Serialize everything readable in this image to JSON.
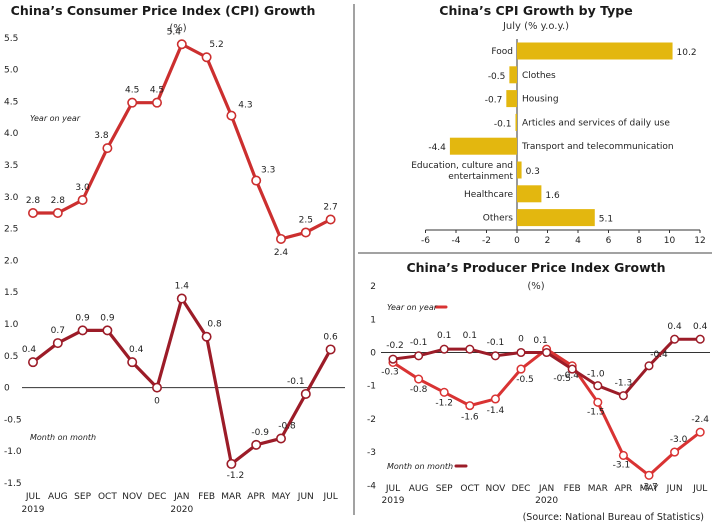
{
  "colors": {
    "cpi_line": "#cc2f2f",
    "mom_line": "#9c1c28",
    "bar_fill": "#e3b70f",
    "ppi_yoy": "#d93333",
    "ppi_mom": "#9c1c28",
    "divider": "#444444"
  },
  "source": "(Source: National Bureau of Statistics)",
  "chart_data": [
    {
      "id": "cpi",
      "type": "line",
      "title": "China’s Consumer Price Index (CPI) Growth",
      "subtitle": "(%)",
      "categories": [
        "JUL",
        "AUG",
        "SEP",
        "OCT",
        "NOV",
        "DEC",
        "JAN",
        "FEB",
        "MAR",
        "APR",
        "MAY",
        "JUN",
        "JUL"
      ],
      "year_labels": [
        {
          "index": 0,
          "text": "2019"
        },
        {
          "index": 6,
          "text": "2020"
        }
      ],
      "yticks": [
        "5.5",
        "5.0",
        "4.5",
        "4.0",
        "3.5",
        "3.0",
        "2.5",
        "2.0",
        "1.5",
        "1.0",
        "0.5",
        "0",
        "-0.5",
        "-1.0",
        "-1.5"
      ],
      "series": [
        {
          "name": "Year on year",
          "values": [
            2.8,
            2.8,
            3.0,
            3.8,
            4.5,
            4.5,
            5.4,
            5.2,
            4.3,
            3.3,
            2.4,
            2.5,
            2.7
          ],
          "labels": [
            "2.8",
            "2.8",
            "3.0",
            "3.8",
            "4.5",
            "4.5",
            "5.4",
            "5.2",
            "4.3",
            "3.3",
            "2.4",
            "2.5",
            "2.7"
          ]
        },
        {
          "name": "Month on month",
          "values": [
            0.4,
            0.7,
            0.9,
            0.9,
            0.4,
            0,
            1.4,
            0.8,
            -1.2,
            -0.9,
            -0.8,
            -0.1,
            0.6
          ],
          "labels": [
            "0.4",
            "0.7",
            "0.9",
            "0.9",
            "0.4",
            "0",
            "1.4",
            "0.8",
            "-1.2",
            "-0.9",
            "-0.8",
            "-0.1",
            "0.6"
          ]
        }
      ]
    },
    {
      "id": "bytype",
      "type": "bar",
      "title": "China’s CPI Growth by Type",
      "subtitle": "July (% y.o.y.)",
      "categories": [
        "Food",
        "Clothes",
        "Housing",
        "Articles and services of daily use",
        "Transport and telecommunication",
        "Education, culture and entertainment",
        "Healthcare",
        "Others"
      ],
      "values": [
        10.2,
        -0.5,
        -0.7,
        -0.1,
        -4.4,
        0.3,
        1.6,
        5.1
      ],
      "value_labels": [
        "10.2",
        "-0.5",
        "-0.7",
        "-0.1",
        "-4.4",
        "0.3",
        "1.6",
        "5.1"
      ],
      "xticks": [
        "-6",
        "-4",
        "-2",
        "0",
        "2",
        "4",
        "6",
        "8",
        "10",
        "12"
      ],
      "xlim": [
        -6,
        12
      ]
    },
    {
      "id": "ppi",
      "type": "line",
      "title": "China’s Producer Price Index Growth",
      "subtitle": "(%)",
      "categories": [
        "JUL",
        "AUG",
        "SEP",
        "OCT",
        "NOV",
        "DEC",
        "JAN",
        "FEB",
        "MAR",
        "APR",
        "MAY",
        "JUN",
        "JUL"
      ],
      "year_labels": [
        {
          "index": 0,
          "text": "2019"
        },
        {
          "index": 6,
          "text": "2020"
        }
      ],
      "yticks": [
        "2",
        "1",
        "0",
        "-1",
        "-2",
        "-3",
        "-4"
      ],
      "ylim": [
        -4,
        2
      ],
      "series": [
        {
          "name": "Year on year",
          "values": [
            -0.3,
            -0.8,
            -1.2,
            -1.6,
            -1.4,
            -0.5,
            0.1,
            -0.4,
            -1.5,
            -3.1,
            -3.7,
            -3.0,
            -2.4
          ],
          "labels": [
            "-0.3",
            "-0.8",
            "-1.2",
            "-1.6",
            "-1.4",
            "-0.5",
            "0.1",
            "-0.4",
            "-1.5",
            "-3.1",
            "-3.7",
            "-3.0",
            "-2.4"
          ]
        },
        {
          "name": "Month on month",
          "values": [
            -0.2,
            -0.1,
            0.1,
            0.1,
            -0.1,
            0,
            0,
            -0.5,
            -1.0,
            -1.3,
            -0.4,
            0.4,
            0.4
          ],
          "labels": [
            "-0.2",
            "-0.1",
            "0.1",
            "0.1",
            "-0.1",
            "0",
            "",
            "-0.5",
            "-1.0",
            "-1.3",
            "-0.4",
            "0.4",
            "0.4"
          ]
        }
      ]
    }
  ]
}
